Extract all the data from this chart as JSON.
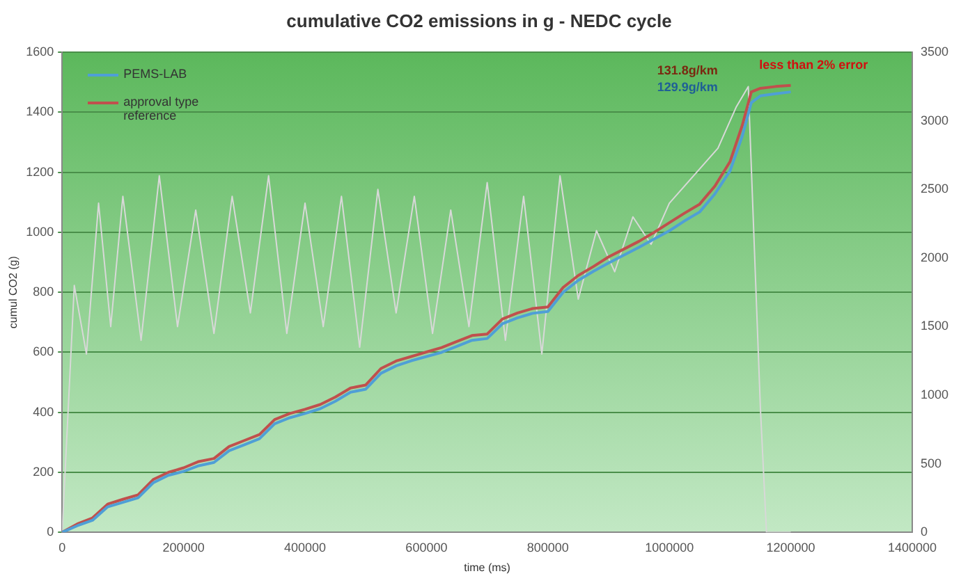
{
  "chart_data": {
    "type": "line",
    "title": "cumulative CO2 emissions in g - NEDC cycle",
    "xlabel": "time (ms)",
    "ylabel": "cumul CO2 (g)",
    "xlim": [
      0,
      1400000
    ],
    "xticks": [
      0,
      200000,
      400000,
      600000,
      800000,
      1000000,
      1200000,
      1400000
    ],
    "ylim": [
      0,
      1600
    ],
    "yticks": [
      0,
      200,
      400,
      600,
      800,
      1000,
      1200,
      1400,
      1600
    ],
    "y2lim": [
      0,
      3500
    ],
    "y2ticks": [
      0,
      500,
      1000,
      1500,
      2000,
      2500,
      3000,
      3500
    ],
    "grid": "y",
    "legend": "top left",
    "marker": "none",
    "x": [
      0,
      25000,
      50000,
      75000,
      100000,
      125000,
      150000,
      175000,
      200000,
      225000,
      250000,
      275000,
      300000,
      325000,
      350000,
      375000,
      400000,
      425000,
      450000,
      475000,
      500000,
      525000,
      550000,
      575000,
      600000,
      625000,
      650000,
      675000,
      700000,
      725000,
      750000,
      775000,
      800000,
      825000,
      850000,
      875000,
      900000,
      925000,
      950000,
      975000,
      1000000,
      1025000,
      1050000,
      1075000,
      1100000,
      1120000,
      1135000,
      1150000,
      1175000,
      1200000
    ],
    "series": [
      {
        "name": "PEMS-LAB",
        "color": "#4f9fd6",
        "values": [
          0,
          22,
          40,
          85,
          100,
          115,
          165,
          190,
          203,
          222,
          233,
          272,
          292,
          312,
          362,
          382,
          396,
          412,
          437,
          467,
          477,
          530,
          555,
          572,
          586,
          600,
          620,
          640,
          646,
          695,
          715,
          730,
          736,
          800,
          840,
          870,
          898,
          924,
          950,
          978,
          1005,
          1038,
          1068,
          1128,
          1205,
          1320,
          1432,
          1455,
          1462,
          1468
        ]
      },
      {
        "name": "approval type reference",
        "color": "#c0504d",
        "values": [
          0,
          28,
          48,
          94,
          110,
          125,
          176,
          200,
          215,
          236,
          246,
          286,
          306,
          326,
          376,
          396,
          410,
          426,
          451,
          481,
          491,
          546,
          571,
          586,
          601,
          616,
          636,
          656,
          661,
          711,
          731,
          746,
          751,
          816,
          856,
          886,
          918,
          944,
          970,
          1000,
          1032,
          1064,
          1094,
          1154,
          1236,
          1356,
          1468,
          1480,
          1486,
          1490
        ]
      },
      {
        "color": "#d8d8d8",
        "axis": "y2",
        "x": [
          0,
          20000,
          40000,
          60000,
          80000,
          100000,
          130000,
          160000,
          190000,
          220000,
          250000,
          280000,
          310000,
          340000,
          370000,
          400000,
          430000,
          460000,
          490000,
          520000,
          550000,
          580000,
          610000,
          640000,
          670000,
          700000,
          730000,
          760000,
          790000,
          820000,
          850000,
          880000,
          910000,
          940000,
          970000,
          1000000,
          1040000,
          1080000,
          1110000,
          1130000,
          1150000,
          1160000,
          1200000
        ],
        "values": [
          0,
          1800,
          1300,
          2400,
          1500,
          2450,
          1400,
          2600,
          1500,
          2350,
          1450,
          2450,
          1600,
          2600,
          1450,
          2400,
          1500,
          2450,
          1350,
          2500,
          1600,
          2450,
          1450,
          2350,
          1500,
          2550,
          1400,
          2450,
          1300,
          2600,
          1700,
          2200,
          1900,
          2300,
          2100,
          2400,
          2600,
          2800,
          3100,
          3250,
          900,
          0,
          0
        ]
      }
    ],
    "annotations": [
      "131.8g/km",
      "129.9g/km",
      "less than 2% error"
    ]
  }
}
